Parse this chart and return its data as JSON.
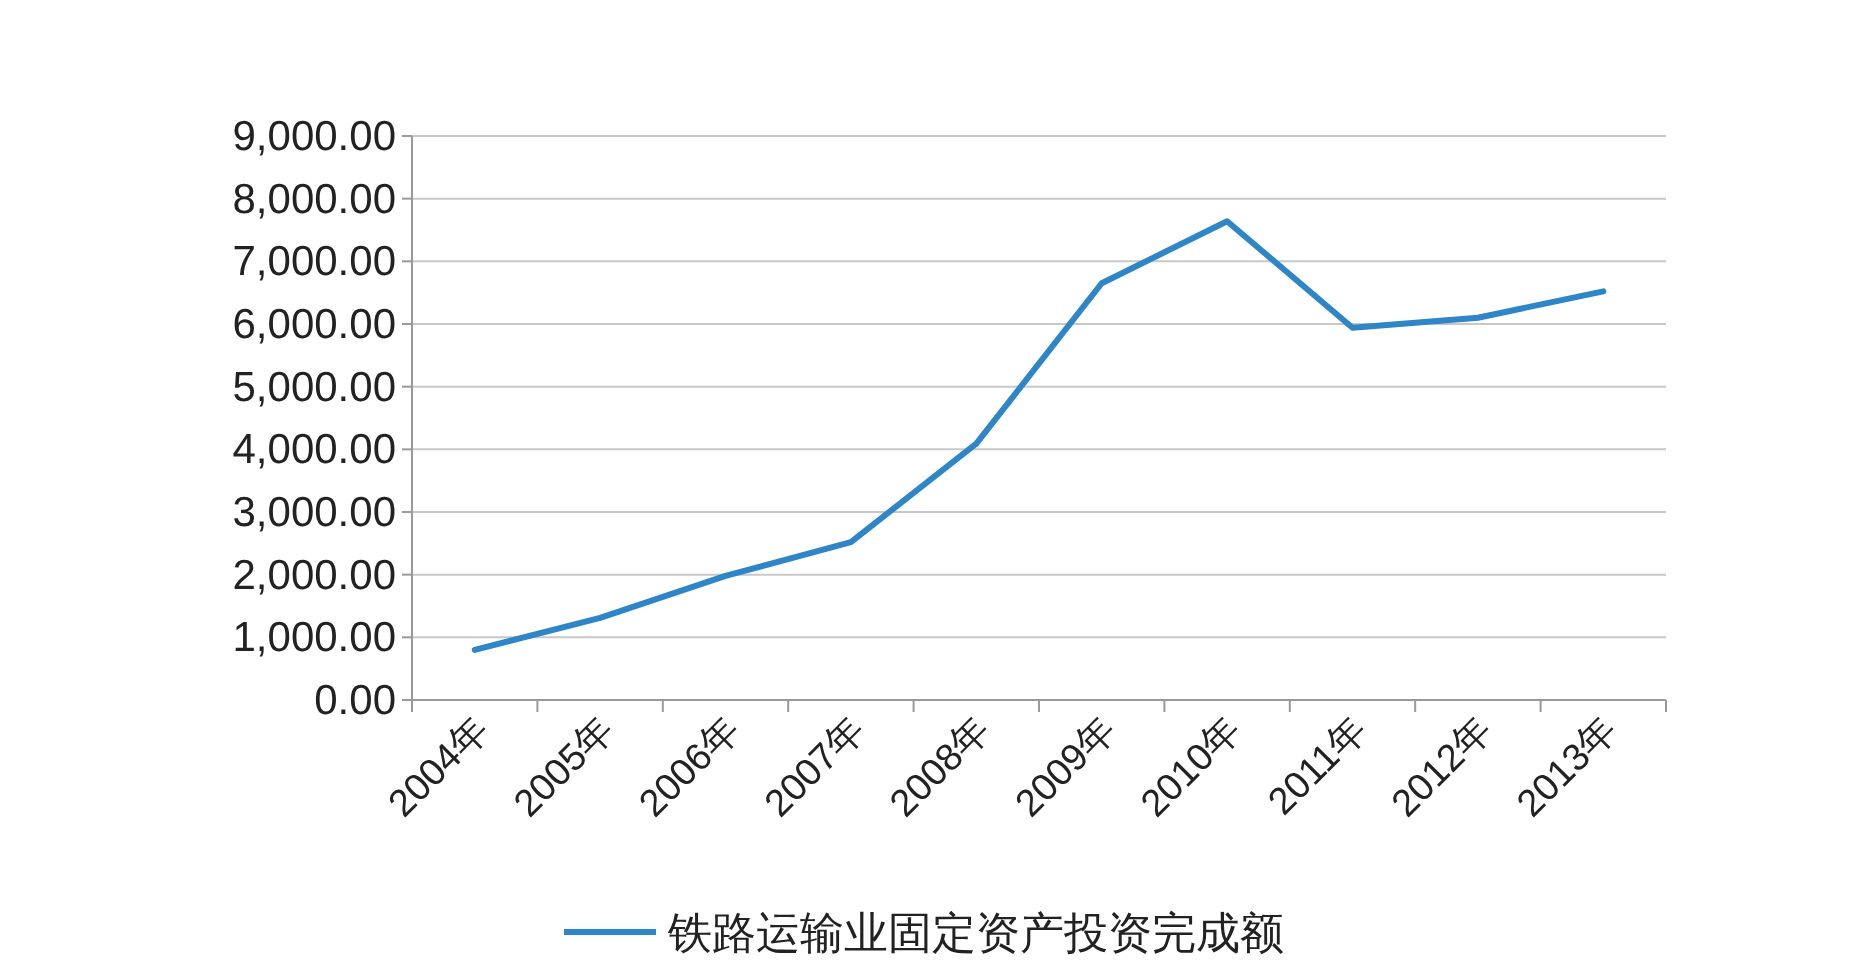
{
  "chart_data": {
    "type": "line",
    "categories": [
      "2004年",
      "2005年",
      "2006年",
      "2007年",
      "2008年",
      "2009年",
      "2010年",
      "2011年",
      "2012年",
      "2013年"
    ],
    "series": [
      {
        "name": "铁路运输业固定资产投资完成额",
        "color": "#2e86c8",
        "values": [
          800,
          1310,
          1980,
          2520,
          4090,
          6650,
          7640,
          5940,
          6100,
          6520
        ]
      }
    ],
    "ylim": [
      0,
      9000
    ],
    "yticks": [
      {
        "value": 0,
        "label": "0.00"
      },
      {
        "value": 1000,
        "label": "1,000.00"
      },
      {
        "value": 2000,
        "label": "2,000.00"
      },
      {
        "value": 3000,
        "label": "3,000.00"
      },
      {
        "value": 4000,
        "label": "4,000.00"
      },
      {
        "value": 5000,
        "label": "5,000.00"
      },
      {
        "value": 6000,
        "label": "6,000.00"
      },
      {
        "value": 7000,
        "label": "7,000.00"
      },
      {
        "value": 8000,
        "label": "8,000.00"
      },
      {
        "value": 9000,
        "label": "9,000.00"
      }
    ],
    "grid": "y",
    "legend": "bottom"
  }
}
